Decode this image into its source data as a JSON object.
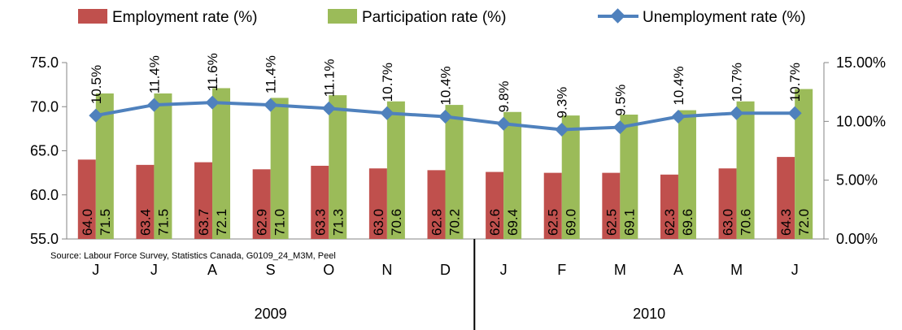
{
  "chart_data": {
    "type": "bar",
    "categories": [
      "J",
      "J",
      "A",
      "S",
      "O",
      "N",
      "D",
      "J",
      "F",
      "M",
      "A",
      "M",
      "J"
    ],
    "groups": [
      {
        "label": "2009",
        "count": 7
      },
      {
        "label": "2010",
        "count": 6
      }
    ],
    "series": [
      {
        "name": "Employment rate (%)",
        "type": "bar",
        "axis": "left",
        "color": "#C0504D",
        "values": [
          64.0,
          63.4,
          63.7,
          62.9,
          63.3,
          63.0,
          62.8,
          62.6,
          62.5,
          62.5,
          62.3,
          63.0,
          64.3
        ],
        "labels": [
          "64.0",
          "63.4",
          "63.7",
          "62.9",
          "63.3",
          "63.0",
          "62.8",
          "62.6",
          "62.5",
          "62.5",
          "62.3",
          "63.0",
          "64.3"
        ]
      },
      {
        "name": "Participation rate (%)",
        "type": "bar",
        "axis": "left",
        "color": "#9BBB59",
        "values": [
          71.5,
          71.5,
          72.1,
          71.0,
          71.3,
          70.6,
          70.2,
          69.4,
          69.0,
          69.1,
          69.6,
          70.6,
          72.0
        ],
        "labels": [
          "71.5",
          "71.5",
          "72.1",
          "71.0",
          "71.3",
          "70.6",
          "70.2",
          "69.4",
          "69.0",
          "69.1",
          "69.6",
          "70.6",
          "72.0"
        ]
      },
      {
        "name": "Unemployment rate (%)",
        "type": "line",
        "axis": "right",
        "color": "#4F81BD",
        "values": [
          10.5,
          11.4,
          11.6,
          11.4,
          11.1,
          10.7,
          10.4,
          9.8,
          9.3,
          9.5,
          10.4,
          10.7,
          10.7
        ],
        "labels": [
          "10.5%",
          "11.4%",
          "11.6%",
          "11.4%",
          "11.1%",
          "10.7%",
          "10.4%",
          "9.8%",
          "9.3%",
          "9.5%",
          "10.4%",
          "10.7%",
          "10.7%"
        ]
      }
    ],
    "y_left": {
      "min": 55,
      "max": 75,
      "ticks": [
        "55.0",
        "60.0",
        "65.0",
        "70.0",
        "75.0"
      ]
    },
    "y_right": {
      "min": 0,
      "max": 15,
      "ticks": [
        "0.00%",
        "5.00%",
        "10.00%",
        "15.00%"
      ]
    },
    "source": "Source: Labour Force Survey, Statistics Canada, G0109_24_M3M, Peel",
    "legend_position": "top"
  }
}
